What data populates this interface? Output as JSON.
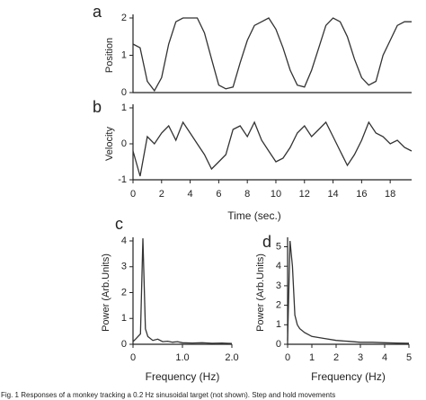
{
  "chart_data": [
    {
      "type": "line",
      "panel_label": "a",
      "ylabel": "Position",
      "x": [
        0,
        0.5,
        1,
        1.5,
        2,
        2.5,
        3,
        3.5,
        4,
        4.5,
        5,
        5.5,
        6,
        6.5,
        7,
        7.5,
        8,
        8.5,
        9,
        9.5,
        10,
        10.5,
        11,
        11.5,
        12,
        12.5,
        13,
        13.5,
        14,
        14.5,
        15,
        15.5,
        16,
        16.5,
        17,
        17.5,
        18,
        18.5,
        19,
        19.5
      ],
      "values": [
        1.3,
        1.2,
        0.3,
        0.05,
        0.4,
        1.3,
        1.9,
        2.0,
        2.0,
        2.0,
        1.6,
        0.9,
        0.2,
        0.1,
        0.15,
        0.8,
        1.4,
        1.8,
        1.9,
        2.0,
        1.7,
        1.2,
        0.6,
        0.2,
        0.15,
        0.6,
        1.2,
        1.8,
        2.0,
        1.9,
        1.5,
        0.9,
        0.4,
        0.2,
        0.3,
        1.0,
        1.4,
        1.8,
        1.9,
        1.9
      ],
      "xlim": [
        0,
        19.5
      ],
      "ylim": [
        0,
        2
      ],
      "yticks": [
        0,
        1,
        2
      ],
      "color": "#333333"
    },
    {
      "type": "line",
      "panel_label": "b",
      "ylabel": "Velocity",
      "xlabel": "Time (sec.)",
      "x": [
        0,
        0.5,
        1,
        1.5,
        2,
        2.5,
        3,
        3.5,
        4,
        4.5,
        5,
        5.5,
        6,
        6.5,
        7,
        7.5,
        8,
        8.5,
        9,
        9.5,
        10,
        10.5,
        11,
        11.5,
        12,
        12.5,
        13,
        13.5,
        14,
        14.5,
        15,
        15.5,
        16,
        16.5,
        17,
        17.5,
        18,
        18.5,
        19,
        19.5
      ],
      "values": [
        -0.2,
        -0.9,
        0.2,
        0.0,
        0.3,
        0.5,
        0.1,
        0.6,
        0.3,
        0.0,
        -0.3,
        -0.7,
        -0.5,
        -0.3,
        0.4,
        0.5,
        0.2,
        0.6,
        0.1,
        -0.2,
        -0.5,
        -0.4,
        -0.1,
        0.3,
        0.5,
        0.2,
        0.4,
        0.6,
        0.2,
        -0.2,
        -0.6,
        -0.3,
        0.1,
        0.6,
        0.3,
        0.2,
        0.0,
        0.1,
        -0.1,
        -0.2
      ],
      "xlim": [
        0,
        19.5
      ],
      "ylim": [
        -1,
        1
      ],
      "yticks": [
        -1,
        0,
        1
      ],
      "xticks": [
        0,
        2,
        4,
        6,
        8,
        10,
        12,
        14,
        16,
        18
      ],
      "color": "#333333"
    },
    {
      "type": "line",
      "panel_label": "c",
      "ylabel": "Power (Arb.Units)",
      "xlabel": "Frequency (Hz)",
      "x": [
        0,
        0.05,
        0.1,
        0.15,
        0.2,
        0.25,
        0.3,
        0.4,
        0.5,
        0.6,
        0.7,
        0.8,
        0.9,
        1.0,
        1.2,
        1.4,
        1.6,
        1.8,
        2.0
      ],
      "values": [
        0.1,
        0.2,
        0.3,
        0.4,
        4.1,
        0.6,
        0.3,
        0.15,
        0.2,
        0.1,
        0.12,
        0.08,
        0.1,
        0.06,
        0.05,
        0.06,
        0.04,
        0.05,
        0.03
      ],
      "xlim": [
        0,
        2
      ],
      "ylim": [
        0,
        4
      ],
      "yticks": [
        0,
        1,
        2,
        3,
        4
      ],
      "xticks": [
        {
          "value": 0,
          "label": "0"
        },
        {
          "value": 1,
          "label": "1.0"
        },
        {
          "value": 2,
          "label": "2.0"
        }
      ],
      "color": "#333333"
    },
    {
      "type": "line",
      "panel_label": "d",
      "ylabel": "Power (Arb.Units)",
      "xlabel": "Frequency (Hz)",
      "x": [
        0,
        0.1,
        0.2,
        0.3,
        0.4,
        0.5,
        0.7,
        1,
        1.5,
        2,
        2.5,
        3,
        3.5,
        4,
        4.5,
        5
      ],
      "values": [
        0.2,
        5.3,
        4.0,
        1.5,
        1.0,
        0.8,
        0.6,
        0.4,
        0.3,
        0.2,
        0.15,
        0.1,
        0.1,
        0.08,
        0.06,
        0.05
      ],
      "xlim": [
        0,
        5
      ],
      "ylim": [
        0,
        5.3
      ],
      "yticks": [
        0,
        1,
        2,
        3,
        4,
        5
      ],
      "xticks": [
        0,
        1,
        2,
        3,
        4,
        5
      ],
      "color": "#333333"
    }
  ],
  "caption": "Fig. 1  Responses of a monkey tracking a 0.2 Hz sinusoidal target (not shown). Step and hold movements"
}
